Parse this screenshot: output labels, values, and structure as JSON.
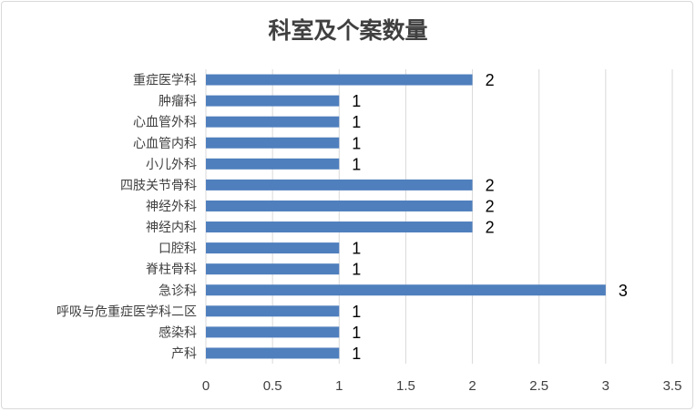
{
  "chart_data": {
    "type": "bar",
    "orientation": "horizontal",
    "title": "科室及个案数量",
    "categories": [
      "重症医学科",
      "肿瘤科",
      "心血管外科",
      "心血管内科",
      "小儿外科",
      "四肢关节骨科",
      "神经外科",
      "神经内科",
      "口腔科",
      "脊柱骨科",
      "急诊科",
      "呼吸与危重症医学科二区",
      "感染科",
      "产科"
    ],
    "values": [
      2,
      1,
      1,
      1,
      1,
      2,
      2,
      2,
      1,
      1,
      3,
      1,
      1,
      1
    ],
    "xlim": [
      0,
      3.5
    ],
    "xticks": [
      0,
      0.5,
      1,
      1.5,
      2,
      2.5,
      3,
      3.5
    ],
    "xtick_labels": [
      "0",
      "0.5",
      "1",
      "1.5",
      "2",
      "2.5",
      "3",
      "3.5"
    ],
    "grid": true,
    "legend": "none",
    "colors": {
      "bar": "#4f7fbd",
      "grid": "#d9d9d9",
      "text": "#404040"
    }
  }
}
